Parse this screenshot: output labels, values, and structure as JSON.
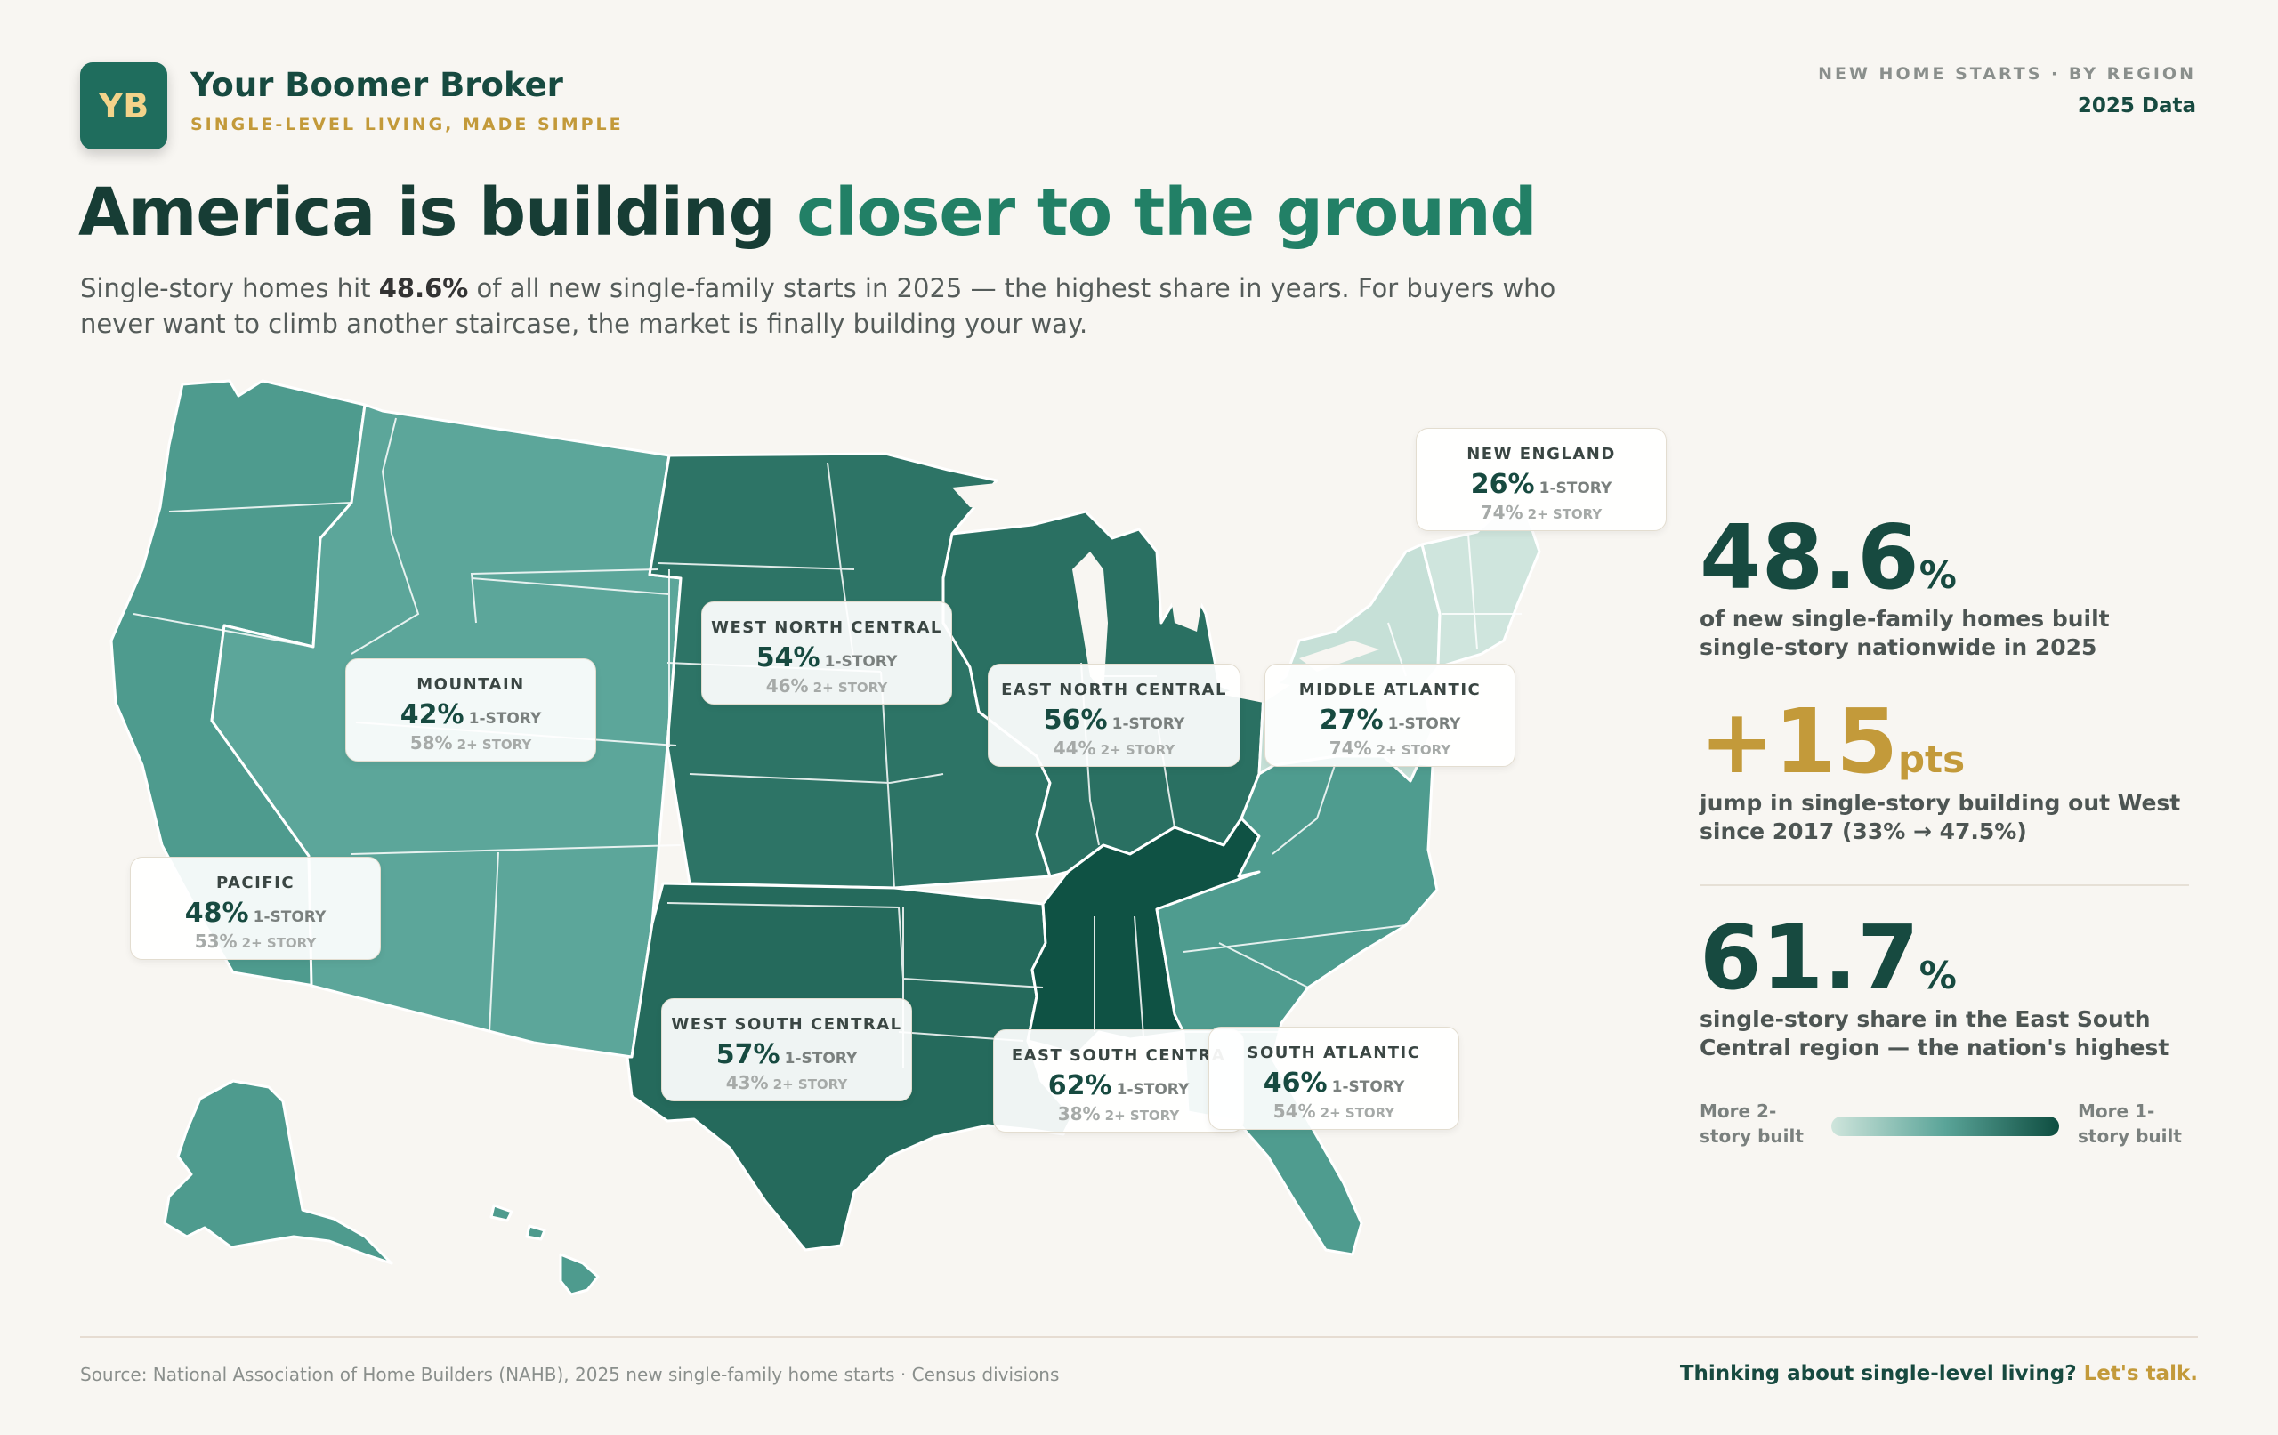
{
  "brand": {
    "logo": "YB",
    "name": "Your Boomer Broker",
    "tagline": "SINGLE-LEVEL LIVING, MADE SIMPLE"
  },
  "header_right": {
    "kicker": "NEW HOME STARTS · BY REGION",
    "year": "2025 Data"
  },
  "headline": {
    "part1": "America is building ",
    "part2": "closer to the ground"
  },
  "subhead": {
    "pre": "Single-story homes hit ",
    "bold": "48.6%",
    "post": " of all new single-family starts in 2025 — the highest share in years. For buyers who never want to climb another staircase, the market is finally building your way."
  },
  "label_suffix": {
    "one": "1-STORY",
    "two": "2+ STORY"
  },
  "regions": [
    {
      "name": "PACIFIC",
      "single": "48%",
      "multi": "53%",
      "single_value": 48,
      "color": "#4e9b8e"
    },
    {
      "name": "MOUNTAIN",
      "single": "42%",
      "multi": "58%",
      "single_value": 42,
      "color": "#5ca69a"
    },
    {
      "name": "WEST NORTH CENTRAL",
      "single": "54%",
      "multi": "46%",
      "single_value": 54,
      "color": "#2d7466"
    },
    {
      "name": "EAST NORTH CENTRAL",
      "single": "56%",
      "multi": "44%",
      "single_value": 56,
      "color": "#2a7062"
    },
    {
      "name": "MIDDLE ATLANTIC",
      "single": "27%",
      "multi": "74%",
      "single_value": 27,
      "color": "#c6e0d7"
    },
    {
      "name": "NEW ENGLAND",
      "single": "26%",
      "multi": "74%",
      "single_value": 26,
      "color": "#cfe5dd"
    },
    {
      "name": "WEST SOUTH CENTRAL",
      "single": "57%",
      "multi": "43%",
      "single_value": 57,
      "color": "#256a5c"
    },
    {
      "name": "EAST SOUTH CENTRA",
      "single": "62%",
      "multi": "38%",
      "single_value": 62,
      "color": "#0f5244"
    },
    {
      "name": "SOUTH ATLANTIC",
      "single": "46%",
      "multi": "54%",
      "single_value": 46,
      "color": "#4f9c8f"
    }
  ],
  "stats": [
    {
      "num": "48.6",
      "unit": "%",
      "desc": "of new single-family homes built single-story nationwide in 2025",
      "color": "#174a40"
    },
    {
      "num": "+15",
      "unit": "pts",
      "desc": "jump in single-story building out West since 2017 (33% → 47.5%)",
      "color": "#c39a3a"
    },
    {
      "num": "61.7",
      "unit": "%",
      "desc": "single-story share in the East South Central region — the nation's highest",
      "color": "#174a40"
    }
  ],
  "legend": {
    "low": "More 2-story built",
    "high": "More 1-story built"
  },
  "footer": {
    "source": "Source: National Association of Home Builders (NAHB), 2025 new single-family home starts · Census divisions",
    "cta": "Thinking about single-level living?",
    "cta_link": "Let's talk."
  }
}
